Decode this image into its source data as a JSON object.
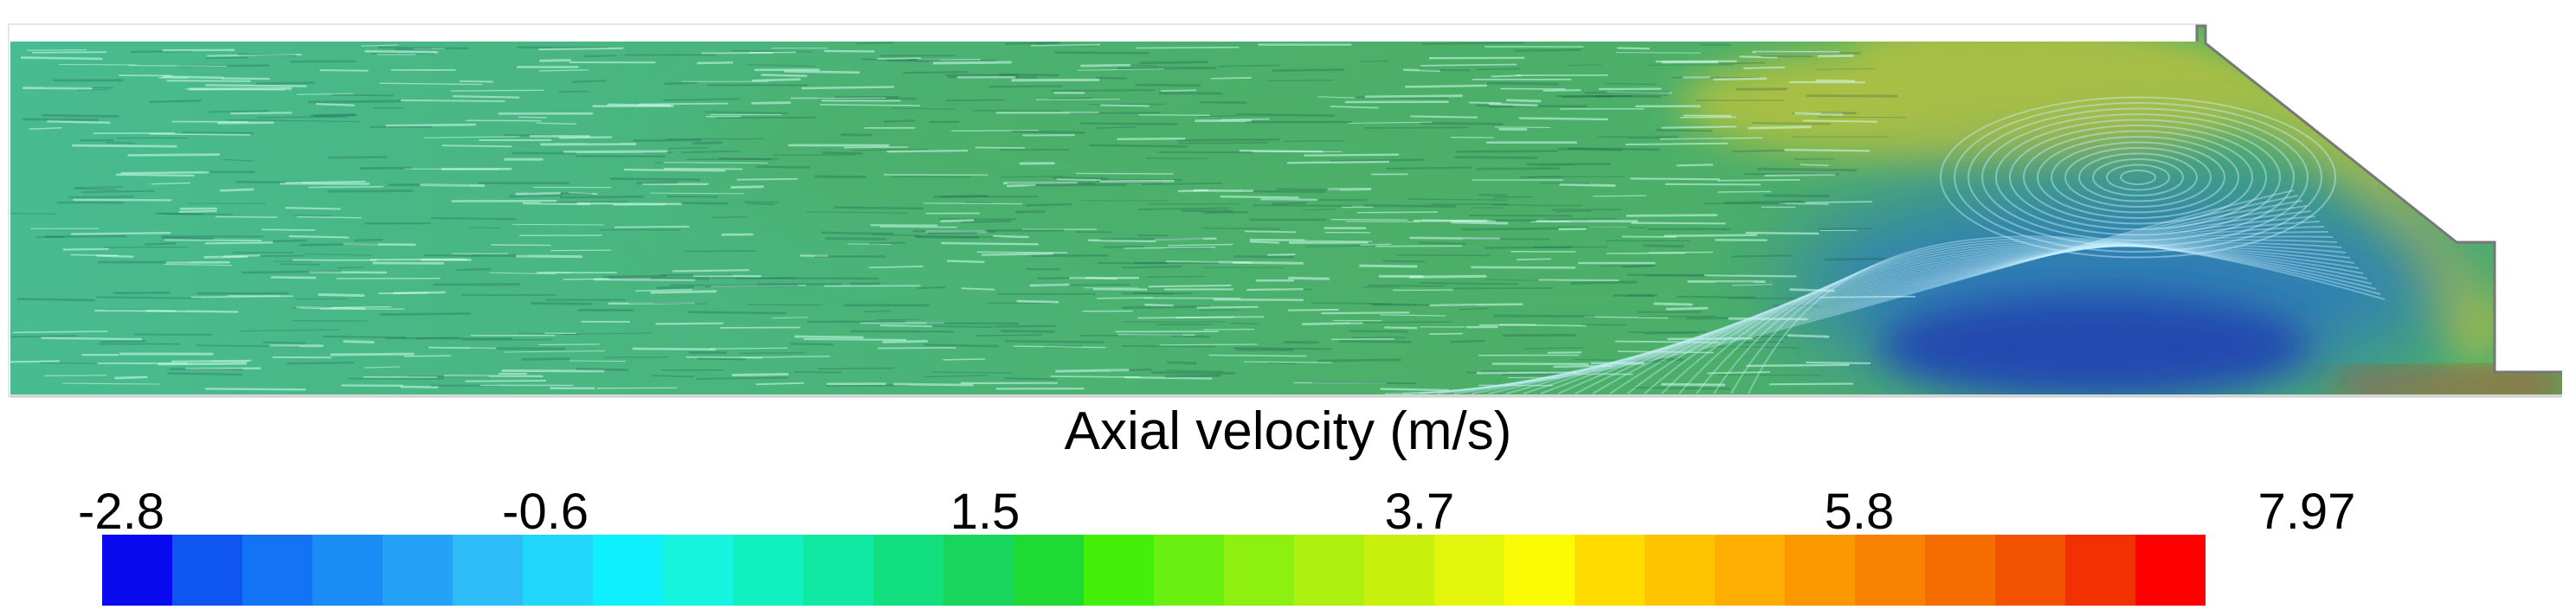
{
  "colorbar": {
    "title": "Axial velocity (m/s)",
    "ticks": [
      "-2.8",
      "-0.6",
      "1.5",
      "3.7",
      "5.8",
      "7.97"
    ],
    "colors": [
      "#0a0af0",
      "#0f55f2",
      "#1273f4",
      "#1a8cf5",
      "#24a3f6",
      "#2dbcf8",
      "#21d6fb",
      "#0ff0ff",
      "#17f5e0",
      "#11f0c0",
      "#0fe8a0",
      "#12e07e",
      "#18d65c",
      "#1fda33",
      "#44ef0a",
      "#6af010",
      "#8ef010",
      "#aef010",
      "#c8f00c",
      "#e2f50a",
      "#fbfb05",
      "#fedc00",
      "#fec400",
      "#fdae00",
      "#fb9800",
      "#f98300",
      "#f56d00",
      "#f35200",
      "#f23000",
      "#ff0000"
    ]
  },
  "flowfield": {
    "colors": {
      "background": "#48bb91",
      "core": "#4caf69",
      "jet": "#a9bf44",
      "recirculation": "#2f7fb6",
      "deep_recirculation": "#2448b0",
      "nozzle_jet": "#e03018",
      "wall": "#d9d9d9"
    }
  }
}
